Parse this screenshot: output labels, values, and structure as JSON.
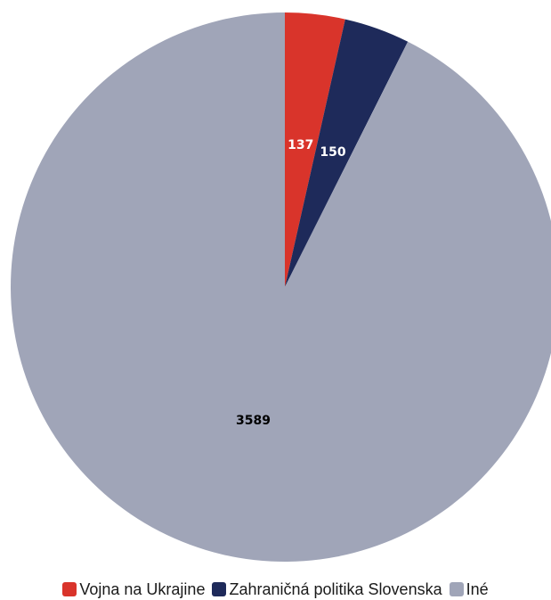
{
  "chart_data": {
    "type": "pie",
    "title": "",
    "slices": [
      {
        "label": "Vojna na Ukrajine",
        "value": 137,
        "color": "#d9342b"
      },
      {
        "label": "Zahraničná politika Slovenska",
        "value": 150,
        "color": "#1e2a5a"
      },
      {
        "label": "Iné",
        "value": 3589,
        "color": "#a0a5b8"
      }
    ],
    "label_colors": [
      "#ffffff",
      "#ffffff",
      "#000000"
    ],
    "legend_position": "bottom"
  }
}
